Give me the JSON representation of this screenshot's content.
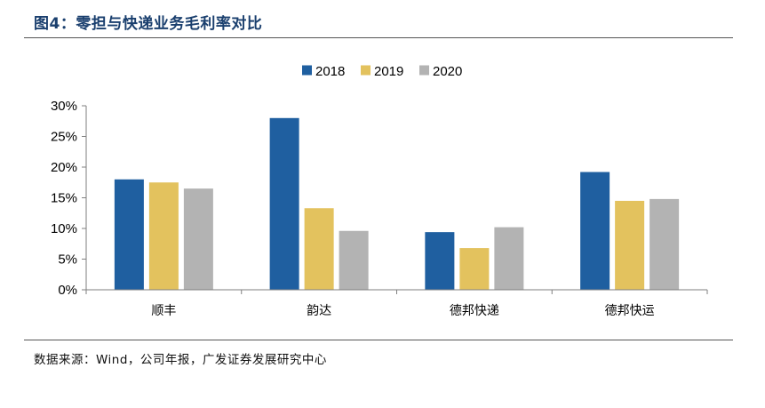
{
  "header": {
    "title": "图4：零担与快递业务毛利率对比"
  },
  "footer": {
    "source": "数据来源：Wind，公司年报，广发证券发展研究中心"
  },
  "chart_data": {
    "type": "bar",
    "categories": [
      "顺丰",
      "韵达",
      "德邦快递",
      "德邦快运"
    ],
    "series": [
      {
        "name": "2018",
        "color": "#1f5fa0",
        "values": [
          18.0,
          28.0,
          9.4,
          19.2
        ]
      },
      {
        "name": "2019",
        "color": "#e3c25e",
        "values": [
          17.5,
          13.3,
          6.8,
          14.5
        ]
      },
      {
        "name": "2020",
        "color": "#b3b3b3",
        "values": [
          16.5,
          9.6,
          10.2,
          14.8
        ]
      }
    ],
    "ylim": [
      0,
      30
    ],
    "yticks": [
      "0%",
      "5%",
      "10%",
      "15%",
      "20%",
      "25%",
      "30%"
    ],
    "ytick_values": [
      0,
      5,
      10,
      15,
      20,
      25,
      30
    ],
    "legend_position": "top-center",
    "grid": false,
    "title": "",
    "xlabel": "",
    "ylabel": ""
  }
}
